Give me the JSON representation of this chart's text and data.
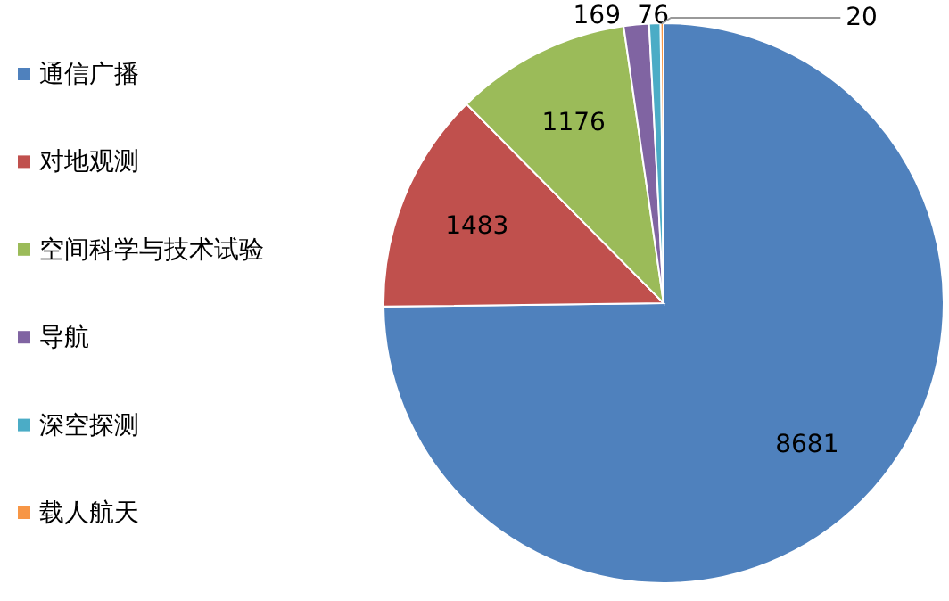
{
  "chart_data": {
    "type": "pie",
    "categories": [
      "通信广播",
      "对地观测",
      "空间科学与技术试验",
      "导航",
      "深空探测",
      "载人航天"
    ],
    "values": [
      8681,
      1483,
      1176,
      169,
      76,
      20
    ],
    "colors": [
      "#4f81bd",
      "#c0504d",
      "#9bbb59",
      "#8064a2",
      "#4bacc6",
      "#f79646"
    ],
    "data_labels": true,
    "legend": "left"
  }
}
